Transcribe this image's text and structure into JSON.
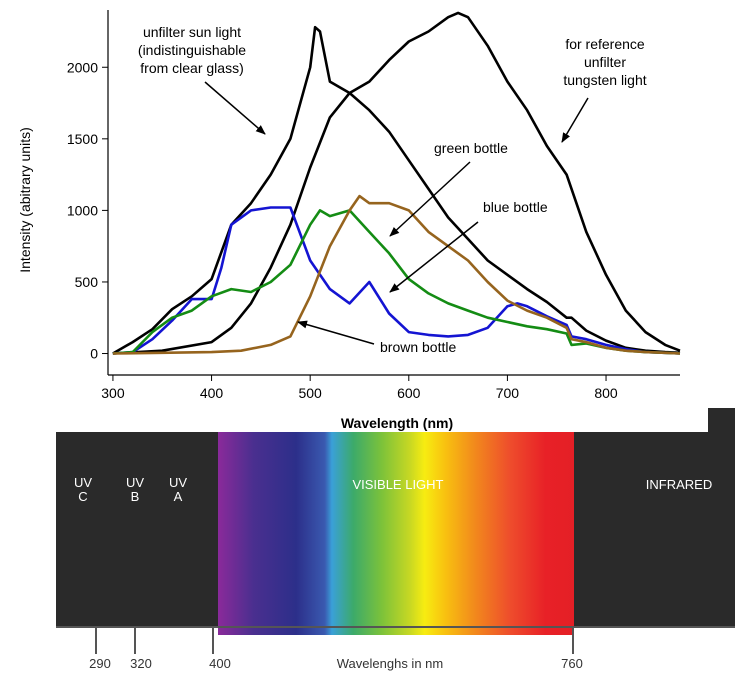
{
  "chart_data": {
    "type": "line",
    "xlabel": "Wavelength (nm)",
    "ylabel": "Intensity (abitrary units)",
    "xlim": [
      295,
      875
    ],
    "ylim": [
      -150,
      2400
    ],
    "xticks": [
      300,
      400,
      500,
      600,
      700,
      800
    ],
    "yticks": [
      0,
      500,
      1000,
      1500,
      2000
    ],
    "grid": false,
    "series": [
      {
        "color": "#000000",
        "x": [
          300,
          320,
          340,
          360,
          380,
          400,
          420,
          440,
          460,
          480,
          500,
          505,
          510,
          520,
          540,
          560,
          580,
          600,
          620,
          640,
          660,
          680,
          700,
          720,
          740,
          760,
          765,
          780,
          800,
          820,
          840,
          860,
          875
        ],
        "values": [
          0,
          80,
          170,
          310,
          400,
          520,
          900,
          1050,
          1250,
          1500,
          2000,
          2280,
          2250,
          1900,
          1820,
          1700,
          1550,
          1350,
          1150,
          950,
          800,
          650,
          550,
          450,
          360,
          250,
          250,
          160,
          90,
          40,
          20,
          10,
          5
        ]
      },
      {
        "color": "#000000",
        "x": [
          300,
          350,
          400,
          420,
          440,
          460,
          480,
          500,
          520,
          540,
          560,
          580,
          600,
          620,
          640,
          650,
          660,
          680,
          700,
          720,
          740,
          760,
          780,
          800,
          820,
          840,
          860,
          875
        ],
        "values": [
          0,
          20,
          80,
          180,
          350,
          600,
          900,
          1300,
          1650,
          1820,
          1900,
          2050,
          2180,
          2250,
          2350,
          2380,
          2350,
          2150,
          1900,
          1700,
          1450,
          1250,
          850,
          550,
          300,
          150,
          60,
          20
        ]
      },
      {
        "color": "#1414d2",
        "x": [
          300,
          320,
          340,
          360,
          380,
          400,
          410,
          420,
          440,
          460,
          480,
          500,
          520,
          540,
          560,
          580,
          600,
          620,
          640,
          660,
          680,
          700,
          710,
          720,
          740,
          760,
          765,
          780,
          800,
          820,
          840,
          860,
          875
        ],
        "values": [
          0,
          10,
          100,
          230,
          380,
          380,
          600,
          900,
          1000,
          1020,
          1020,
          650,
          450,
          350,
          500,
          280,
          150,
          130,
          120,
          130,
          180,
          330,
          350,
          330,
          260,
          200,
          120,
          100,
          60,
          30,
          10,
          5,
          0
        ]
      },
      {
        "color": "#148c14",
        "x": [
          300,
          320,
          340,
          360,
          380,
          400,
          420,
          440,
          460,
          480,
          500,
          510,
          520,
          540,
          560,
          580,
          600,
          620,
          640,
          660,
          680,
          700,
          720,
          740,
          760,
          765,
          780,
          800,
          820,
          840,
          860,
          875
        ],
        "values": [
          0,
          10,
          150,
          250,
          300,
          400,
          450,
          430,
          500,
          620,
          900,
          1000,
          960,
          1000,
          850,
          700,
          520,
          420,
          350,
          300,
          250,
          220,
          190,
          170,
          140,
          60,
          70,
          40,
          20,
          10,
          5,
          0
        ]
      },
      {
        "color": "#96641e",
        "x": [
          300,
          350,
          400,
          430,
          460,
          480,
          500,
          520,
          540,
          550,
          560,
          580,
          600,
          620,
          640,
          660,
          680,
          700,
          720,
          740,
          760,
          765,
          780,
          800,
          820,
          840,
          860,
          875
        ],
        "values": [
          0,
          5,
          10,
          20,
          60,
          120,
          400,
          750,
          1000,
          1100,
          1050,
          1050,
          1000,
          850,
          750,
          650,
          500,
          370,
          300,
          250,
          180,
          100,
          80,
          40,
          20,
          10,
          5,
          0
        ]
      }
    ],
    "annotations": [
      {
        "text": "unfilter sun light",
        "series": 0
      },
      {
        "text": "(indistinguishable",
        "series": 0
      },
      {
        "text": "from clear glass)",
        "series": 0
      },
      {
        "text": "for reference",
        "series": 1
      },
      {
        "text": "unfilter",
        "series": 1
      },
      {
        "text": "tungsten light",
        "series": 1
      },
      {
        "text": "green bottle",
        "series": 3
      },
      {
        "text": "blue bottle",
        "series": 2
      },
      {
        "text": "brown bottle",
        "series": 4
      }
    ]
  },
  "spectrum": {
    "bands": [
      {
        "line1": "UV",
        "line2": "C"
      },
      {
        "line1": "UV",
        "line2": "B"
      },
      {
        "line1": "UV",
        "line2": "A"
      }
    ],
    "visible_label": "VISIBLE LIGHT",
    "infrared_label": "INFRARED",
    "ticks": [
      "290",
      "320",
      "400",
      "760"
    ],
    "caption": "Wavelenghs in nm"
  }
}
